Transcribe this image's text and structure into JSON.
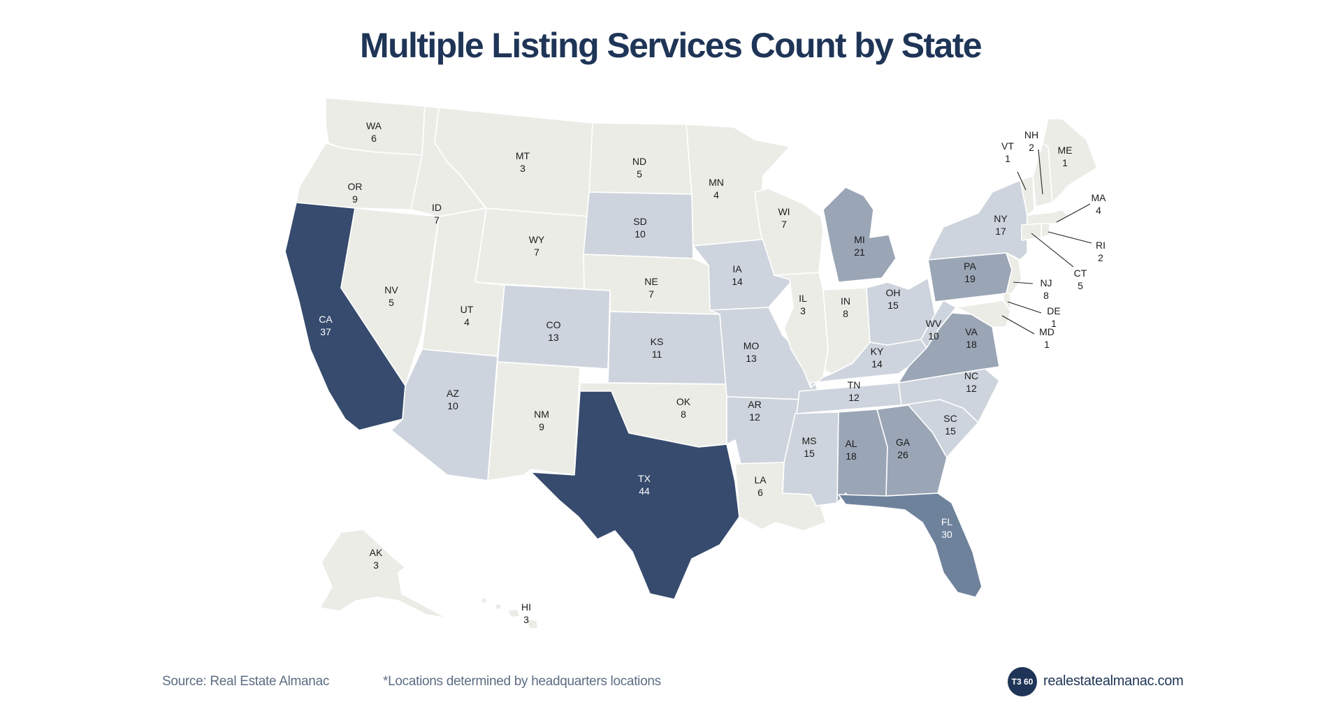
{
  "title": "Multiple Listing Services Count by State",
  "footer": {
    "source": "Source: Real Estate Almanac",
    "note": "*Locations determined by headquarters locations",
    "logo_text": "T3 60",
    "website": "realestatealmanac.com"
  },
  "colors": {
    "scale_lightest": "#ecece7",
    "scale_light": "#ced4dd",
    "scale_mid": "#9aa5b5",
    "scale_mid_dark": "#6f829c",
    "scale_darkest": "#364b6d",
    "title": "#1f3557"
  },
  "states": [
    {
      "abbr": "WA",
      "count": 6
    },
    {
      "abbr": "OR",
      "count": 9
    },
    {
      "abbr": "CA",
      "count": 37
    },
    {
      "abbr": "NV",
      "count": 5
    },
    {
      "abbr": "ID",
      "count": 7
    },
    {
      "abbr": "MT",
      "count": 3
    },
    {
      "abbr": "WY",
      "count": 7
    },
    {
      "abbr": "UT",
      "count": 4
    },
    {
      "abbr": "AZ",
      "count": 10
    },
    {
      "abbr": "CO",
      "count": 13
    },
    {
      "abbr": "NM",
      "count": 9
    },
    {
      "abbr": "ND",
      "count": 5
    },
    {
      "abbr": "SD",
      "count": 10
    },
    {
      "abbr": "NE",
      "count": 7
    },
    {
      "abbr": "KS",
      "count": 11
    },
    {
      "abbr": "OK",
      "count": 8
    },
    {
      "abbr": "TX",
      "count": 44
    },
    {
      "abbr": "MN",
      "count": 4
    },
    {
      "abbr": "IA",
      "count": 14
    },
    {
      "abbr": "MO",
      "count": 13
    },
    {
      "abbr": "AR",
      "count": 12
    },
    {
      "abbr": "LA",
      "count": 6
    },
    {
      "abbr": "WI",
      "count": 7
    },
    {
      "abbr": "IL",
      "count": 3
    },
    {
      "abbr": "MI",
      "count": 21
    },
    {
      "abbr": "IN",
      "count": 8
    },
    {
      "abbr": "OH",
      "count": 15
    },
    {
      "abbr": "KY",
      "count": 14
    },
    {
      "abbr": "TN",
      "count": 12
    },
    {
      "abbr": "MS",
      "count": 15
    },
    {
      "abbr": "AL",
      "count": 18
    },
    {
      "abbr": "GA",
      "count": 26
    },
    {
      "abbr": "FL",
      "count": 30
    },
    {
      "abbr": "SC",
      "count": 15
    },
    {
      "abbr": "NC",
      "count": 12
    },
    {
      "abbr": "VA",
      "count": 18
    },
    {
      "abbr": "WV",
      "count": 10
    },
    {
      "abbr": "PA",
      "count": 19
    },
    {
      "abbr": "NY",
      "count": 17
    },
    {
      "abbr": "VT",
      "count": 1
    },
    {
      "abbr": "NH",
      "count": 2
    },
    {
      "abbr": "ME",
      "count": 1
    },
    {
      "abbr": "MA",
      "count": 4
    },
    {
      "abbr": "RI",
      "count": 2
    },
    {
      "abbr": "CT",
      "count": 5
    },
    {
      "abbr": "NJ",
      "count": 8
    },
    {
      "abbr": "DE",
      "count": 1
    },
    {
      "abbr": "MD",
      "count": 1
    },
    {
      "abbr": "AK",
      "count": 3
    },
    {
      "abbr": "HI",
      "count": 3
    }
  ]
}
